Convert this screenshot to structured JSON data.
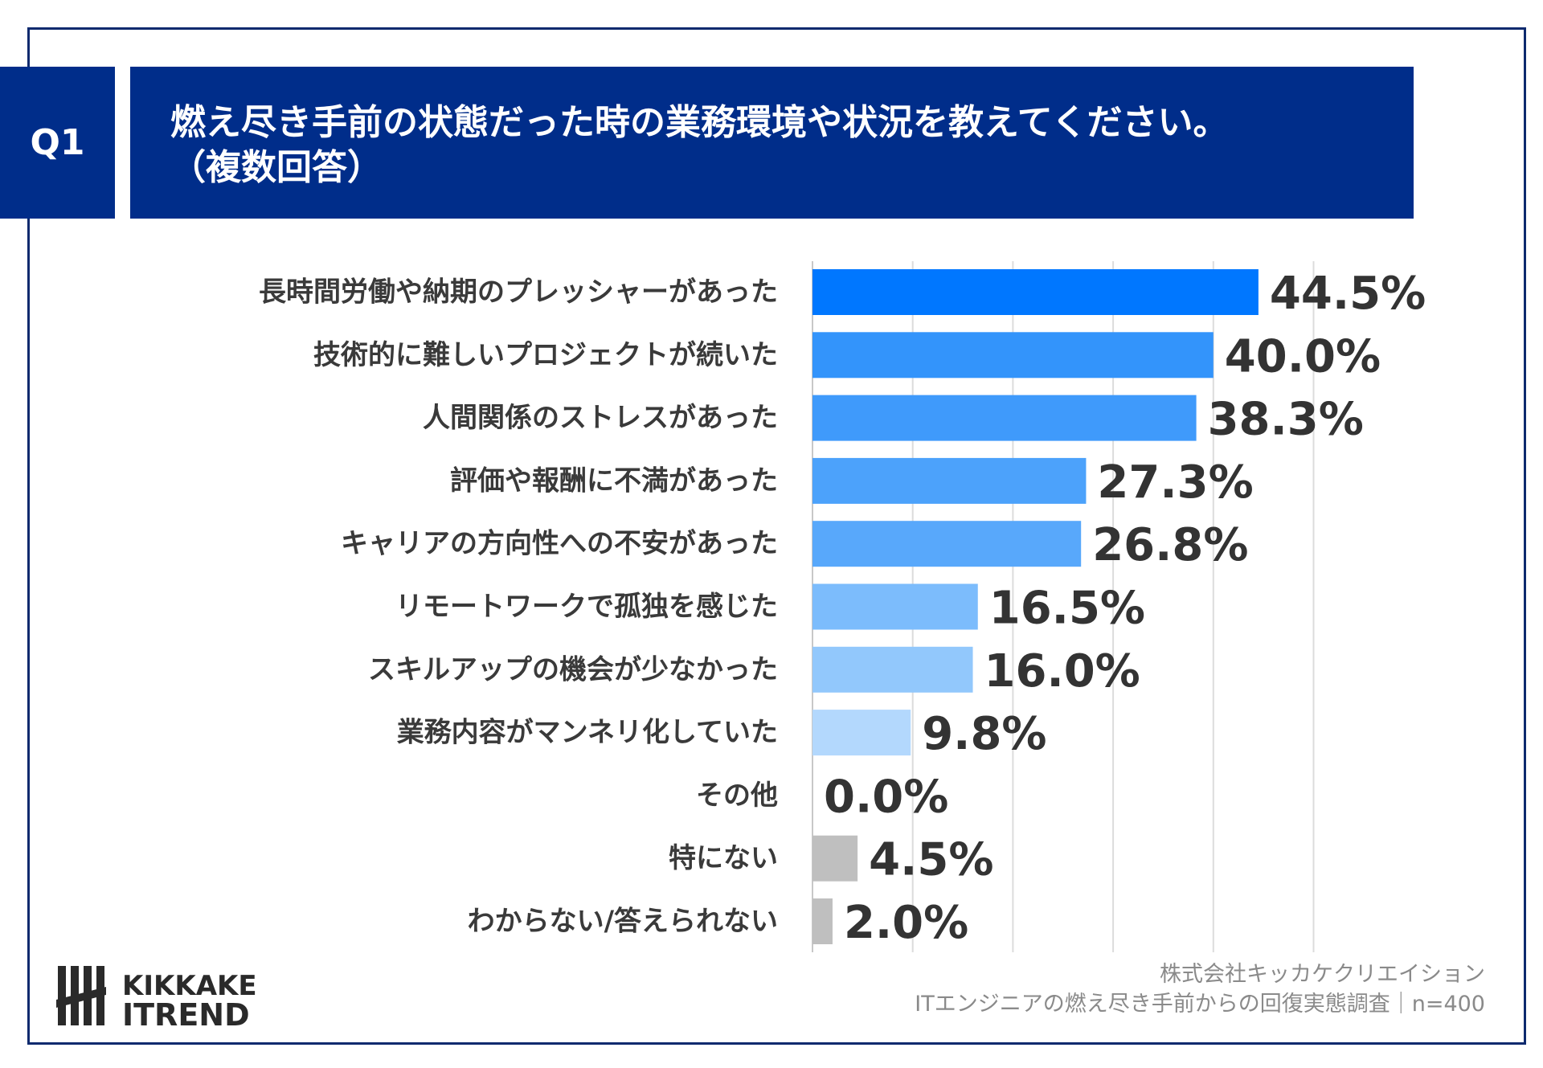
{
  "header": {
    "badge": "Q1",
    "title_line1": "燃え尽き手前の状態だった時の業務環境や状況を教えてください。",
    "title_line2": "（複数回答）"
  },
  "logo": {
    "line1": "KIKKAKE",
    "line2": "ITREND"
  },
  "source": {
    "line1": "株式会社キッカケクリエイション",
    "line2": "ITエンジニアの燃え尽き手前からの回復実態調査｜n=400"
  },
  "colors": {
    "header_bg": "#002d8a",
    "bar_shades": [
      "#0077ff",
      "#3394fb",
      "#3f9afb",
      "#4ca2fb",
      "#58a8fb",
      "#7cbcfc",
      "#92c8fc",
      "#b3d8fd",
      "#b3d8fd",
      "#bfbfbf",
      "#bfbfbf"
    ]
  },
  "chart_data": {
    "type": "bar",
    "orientation": "horizontal",
    "categories": [
      "長時間労働や納期のプレッシャーがあった",
      "技術的に難しいプロジェクトが続いた",
      "人間関係のストレスがあった",
      "評価や報酬に不満があった",
      "キャリアの方向性への不安があった",
      "リモートワークで孤独を感じた",
      "スキルアップの機会が少なかった",
      "業務内容がマンネリ化していた",
      "その他",
      "特にない",
      "わからない/答えられない"
    ],
    "values": [
      44.5,
      40.0,
      38.3,
      27.3,
      26.8,
      16.5,
      16.0,
      9.8,
      0.0,
      4.5,
      2.0
    ],
    "value_labels": [
      "44.5%",
      "40.0%",
      "38.3%",
      "27.3%",
      "26.8%",
      "16.5%",
      "16.0%",
      "9.8%",
      "0.0%",
      "4.5%",
      "2.0%"
    ],
    "xlim": [
      0,
      50
    ],
    "grid": true,
    "legend": "none"
  }
}
